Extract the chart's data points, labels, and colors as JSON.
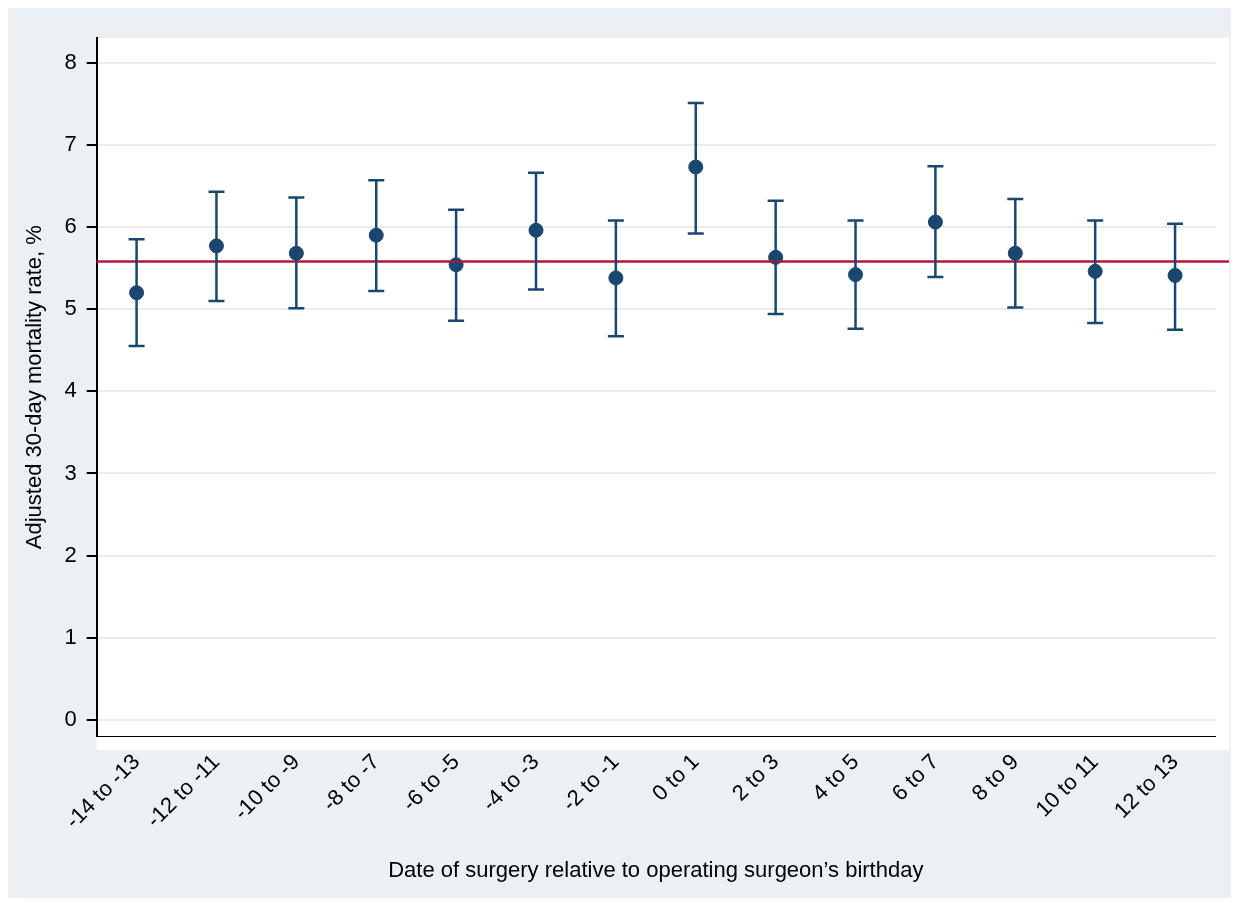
{
  "chart_data": {
    "type": "scatter",
    "xlabel": "Date of surgery relative to operating surgeon’s birthday",
    "ylabel": "Adjusted 30-day mortality rate, %",
    "categories": [
      "-14 to -13",
      "-12 to -11",
      "-10 to -9",
      "-8 to -7",
      "-6 to -5",
      "-4 to -3",
      "-2 to -1",
      "0 to 1",
      "2 to 3",
      "4 to 5",
      "6 to 7",
      "8 to 9",
      "10 to 11",
      "12 to 13"
    ],
    "series": [
      {
        "color": "#1a476f",
        "values": [
          5.2,
          5.77,
          5.68,
          5.9,
          5.54,
          5.96,
          5.38,
          6.73,
          5.63,
          5.42,
          6.06,
          5.68,
          5.46,
          5.41
        ],
        "errors": [
          [
            4.55,
            5.85
          ],
          [
            5.1,
            6.43
          ],
          [
            5.01,
            6.36
          ],
          [
            5.22,
            6.57
          ],
          [
            4.86,
            6.21
          ],
          [
            5.24,
            6.66
          ],
          [
            4.67,
            6.08
          ],
          [
            5.92,
            7.51
          ],
          [
            4.94,
            6.32
          ],
          [
            4.76,
            6.08
          ],
          [
            5.39,
            6.74
          ],
          [
            5.02,
            6.34
          ],
          [
            4.83,
            6.08
          ],
          [
            4.75,
            6.04
          ]
        ]
      }
    ],
    "ylim": [
      -0.2,
      8.3
    ],
    "yticks": [
      0,
      1,
      2,
      3,
      4,
      5,
      6,
      7,
      8
    ],
    "ref_lines": [
      {
        "axis": "y",
        "value": 5.58,
        "color": "#b5163a"
      }
    ],
    "grid": "y",
    "marker": "circle",
    "legend": false
  }
}
